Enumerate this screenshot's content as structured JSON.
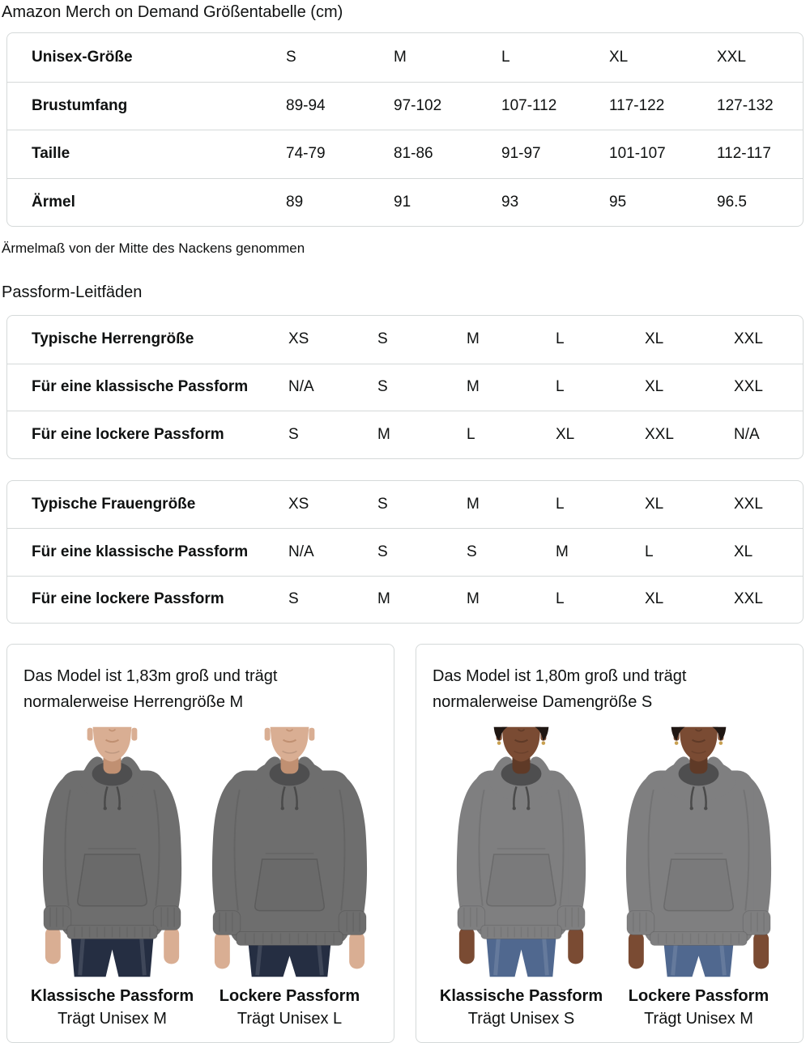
{
  "page": {
    "title": "Amazon Merch on Demand Größentabelle (cm)"
  },
  "size_table": {
    "header": {
      "label": "Unisex-Größe",
      "cols": [
        "S",
        "M",
        "L",
        "XL",
        "XXL"
      ]
    },
    "rows": [
      {
        "label": "Brustumfang",
        "values": [
          "89-94",
          "97-102",
          "107-112",
          "117-122",
          "127-132"
        ]
      },
      {
        "label": "Taille",
        "values": [
          "74-79",
          "81-86",
          "91-97",
          "101-107",
          "112-117"
        ]
      },
      {
        "label": "Ärmel",
        "values": [
          "89",
          "91",
          "93",
          "95",
          "96.5"
        ]
      }
    ],
    "footnote": "Ärmelmaß von der Mitte des Nackens genommen"
  },
  "fit_guides": {
    "heading": "Passform-Leitfäden",
    "tables": [
      {
        "rows": [
          {
            "label": "Typische Herrengröße",
            "values": [
              "XS",
              "S",
              "M",
              "L",
              "XL",
              "XXL"
            ]
          },
          {
            "label": "Für eine klassische Passform",
            "values": [
              "N/A",
              "S",
              "M",
              "L",
              "XL",
              "XXL"
            ]
          },
          {
            "label": "Für eine lockere Passform",
            "values": [
              "S",
              "M",
              "L",
              "XL",
              "XXL",
              "N/A"
            ]
          }
        ]
      },
      {
        "rows": [
          {
            "label": "Typische Frauengröße",
            "values": [
              "XS",
              "S",
              "M",
              "L",
              "XL",
              "XXL"
            ]
          },
          {
            "label": "Für eine klassische Passform",
            "values": [
              "N/A",
              "S",
              "S",
              "M",
              "L",
              "XL"
            ]
          },
          {
            "label": "Für eine lockere Passform",
            "values": [
              "S",
              "M",
              "M",
              "L",
              "XL",
              "XXL"
            ]
          }
        ]
      }
    ]
  },
  "model_cards": [
    {
      "description": "Das Model ist 1,83m groß und trägt normalerweise Herrengröße M",
      "figures": [
        {
          "fit_label": "Klassische Passform",
          "size_label": "Trägt Unisex M"
        },
        {
          "fit_label": "Lockere Passform",
          "size_label": "Trägt Unisex L"
        }
      ]
    },
    {
      "description": "Das Model ist 1,80m groß und trägt normalerweise Damengröße S",
      "figures": [
        {
          "fit_label": "Klassische Passform",
          "size_label": "Trägt Unisex S"
        },
        {
          "fit_label": "Lockere Passform",
          "size_label": "Trägt Unisex M"
        }
      ]
    }
  ],
  "colors": {
    "text": "#0F1111",
    "table_border": "#D5D9D9",
    "hoodie_male": "#6E6E6E",
    "hoodie_female": "#7F7F80",
    "hood_inner": "#4E4E4F",
    "drawstring": "#4A4A4A",
    "skin_male": "#D9AE93",
    "skin_male_shadow": "#C09072",
    "skin_female": "#7A4B33",
    "skin_female_shadow": "#5F3A27",
    "jeans_male": "#252E42",
    "jeans_female": "#50688F",
    "hair_female": "#201713",
    "earring": "#C8A050"
  }
}
